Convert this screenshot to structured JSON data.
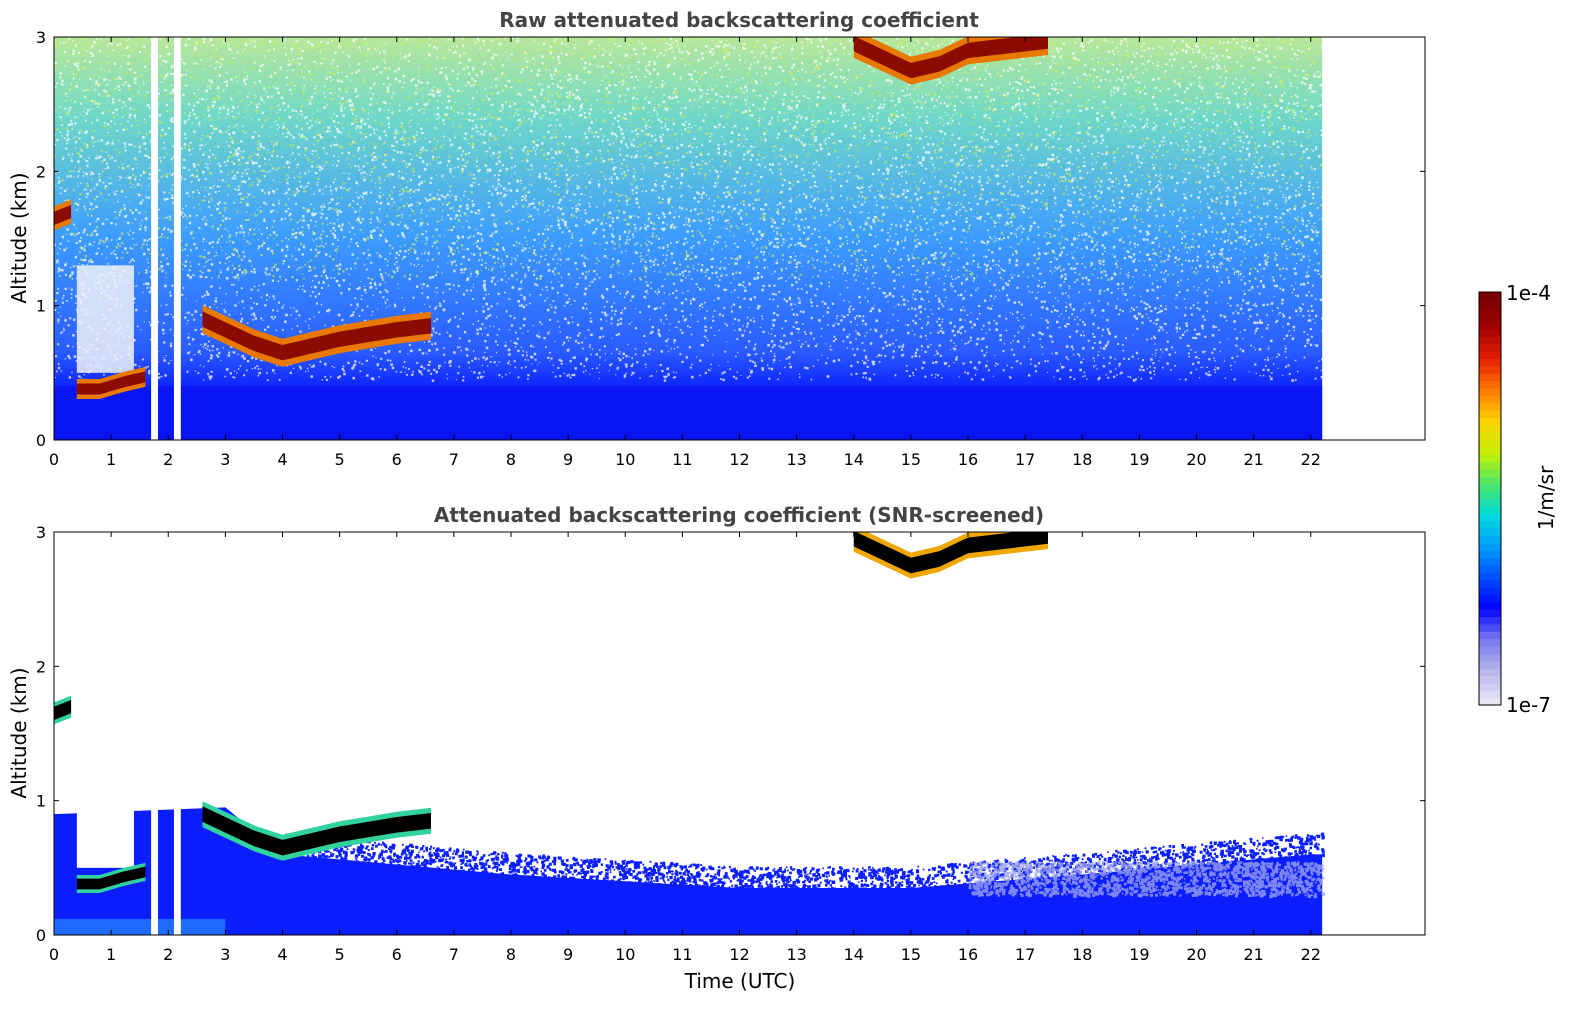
{
  "chart_data": [
    {
      "type": "heatmap",
      "title": "Raw attenuated backscattering coefficient",
      "xlabel": "",
      "ylabel": "Altitude (km)",
      "xlim": [
        0,
        24
      ],
      "ylim": [
        0,
        3
      ],
      "data_extent_x": [
        0,
        22.2
      ],
      "x_ticks": [
        "0",
        "1",
        "2",
        "3",
        "4",
        "5",
        "6",
        "7",
        "8",
        "9",
        "10",
        "11",
        "12",
        "13",
        "14",
        "15",
        "16",
        "17",
        "18",
        "19",
        "20",
        "21",
        "22"
      ],
      "y_ticks": [
        "0",
        "1",
        "2",
        "3"
      ],
      "data_gaps_x": [
        [
          1.7,
          1.82
        ],
        [
          2.1,
          2.22
        ]
      ],
      "features": {
        "boundary_layer_top_km": 0.4,
        "low_cloud_layer": {
          "x": [
            2.6,
            3.5,
            4.0,
            5.0,
            6.0,
            6.6
          ],
          "y": [
            0.9,
            0.72,
            0.65,
            0.75,
            0.82,
            0.85
          ]
        },
        "early_cloud": {
          "x": [
            0.0,
            0.3
          ],
          "y": [
            1.65,
            1.7
          ]
        },
        "near_surface_cloud": {
          "x": [
            0.4,
            0.8,
            1.2,
            1.6
          ],
          "y": [
            0.38,
            0.38,
            0.43,
            0.47
          ]
        },
        "high_cloud": {
          "x": [
            14.0,
            14.5,
            15.0,
            15.5,
            16.0,
            17.4
          ],
          "y": [
            2.95,
            2.85,
            2.75,
            2.8,
            2.9,
            2.97
          ]
        }
      }
    },
    {
      "type": "heatmap",
      "title": "Attenuated backscattering coefficient (SNR-screened)",
      "xlabel": "Time (UTC)",
      "ylabel": "Altitude (km)",
      "xlim": [
        0,
        24
      ],
      "ylim": [
        0,
        3
      ],
      "data_extent_x": [
        0,
        22.2
      ],
      "x_ticks": [
        "0",
        "1",
        "2",
        "3",
        "4",
        "5",
        "6",
        "7",
        "8",
        "9",
        "10",
        "11",
        "12",
        "13",
        "14",
        "15",
        "16",
        "17",
        "18",
        "19",
        "20",
        "21",
        "22"
      ],
      "y_ticks": [
        "0",
        "1",
        "2",
        "3"
      ],
      "data_gaps_x": [
        [
          1.7,
          1.82
        ],
        [
          2.1,
          2.22
        ]
      ],
      "features": {
        "boundary_layer_top_km": [
          0.6,
          0.45,
          0.35,
          0.35,
          0.45,
          0.6
        ],
        "boundary_layer_top_x": [
          4.0,
          8.0,
          12.0,
          15.0,
          18.0,
          22.0
        ]
      }
    }
  ],
  "colorbar": {
    "label": "1/m/sr",
    "max_label": "1e-4",
    "min_label": "1e-7",
    "colors": [
      "#e6e6f5",
      "#b4b4eb",
      "#7878f0",
      "#0000ff",
      "#0050ff",
      "#00a0ff",
      "#00dcdc",
      "#50e664",
      "#c8f000",
      "#ffd200",
      "#ff7800",
      "#e61e00",
      "#a00000",
      "#780000"
    ]
  }
}
